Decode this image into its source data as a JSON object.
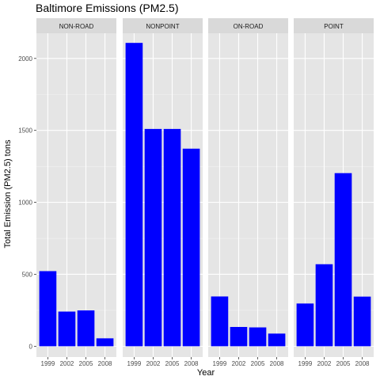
{
  "chart_data": {
    "type": "bar",
    "title": "Baltimore Emissions (PM2.5)",
    "xlabel": "Year",
    "ylabel": "Total Emission (PM2.5) tons",
    "categories": [
      "1999",
      "2002",
      "2005",
      "2008"
    ],
    "ylim": [
      -75,
      2175
    ],
    "yticks": [
      0,
      500,
      1000,
      1500,
      2000
    ],
    "grid": true,
    "bar_color": "#0000FF",
    "panel_background": "#E5E5E5",
    "strip_background": "#D9D9D9",
    "facets": [
      {
        "name": "NON-ROAD",
        "values": [
          522,
          241,
          249,
          55
        ]
      },
      {
        "name": "NONPOINT",
        "values": [
          2108,
          1510,
          1510,
          1373
        ]
      },
      {
        "name": "ON-ROAD",
        "values": [
          346,
          134,
          131,
          88
        ]
      },
      {
        "name": "POINT",
        "values": [
          297,
          570,
          1203,
          345
        ]
      }
    ]
  }
}
